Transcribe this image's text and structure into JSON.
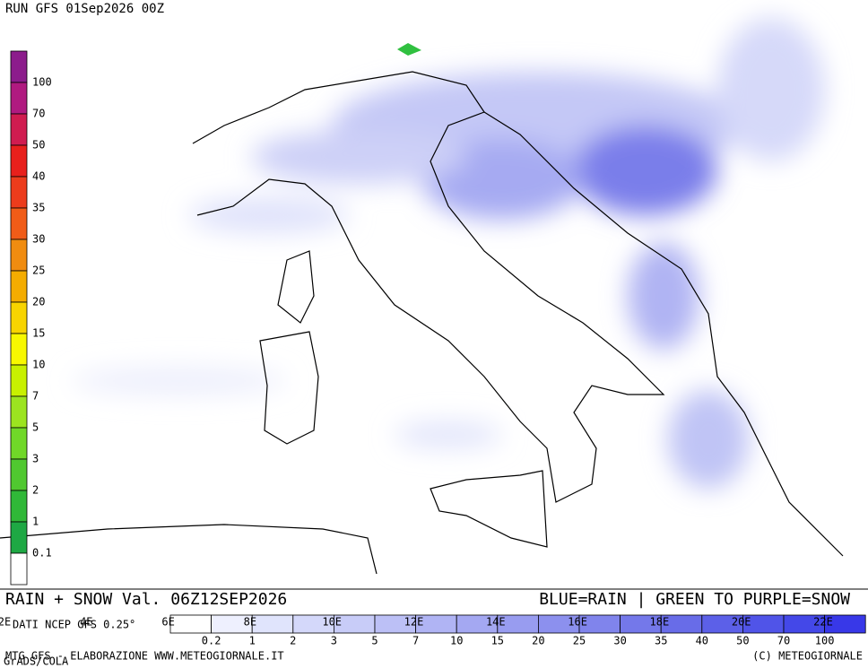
{
  "header": {
    "run": "RUN GFS 01Sep2026 00Z"
  },
  "snow_scale": {
    "labels": [
      "100",
      "70",
      "50",
      "40",
      "35",
      "30",
      "25",
      "20",
      "15",
      "10",
      "7",
      "5",
      "3",
      "2",
      "1",
      "0.1"
    ],
    "colors": [
      "#8c1c8c",
      "#b01a80",
      "#d01c50",
      "#e8201c",
      "#ec3c1c",
      "#f05c18",
      "#f08c10",
      "#f4ac00",
      "#f8d400",
      "#f8f800",
      "#c8f000",
      "#9ce420",
      "#70d828",
      "#50c830",
      "#30b838",
      "#1ea844",
      "#ffffff"
    ]
  },
  "footer": {
    "title": "RAIN + SNOW Val. 06Z12SEP2026",
    "legend": "BLUE=RAIN | GREEN TO PURPLE=SNOW",
    "source": "DATI NCEP GFS 0.25°",
    "credit": "MTG GFS - ELABORAZIONE WWW.METEOGIORNALE.IT",
    "copyright": "(C) METEOGIORNALE",
    "grads": "GrADS/COLA"
  },
  "longitudes": [
    "2E",
    "4E",
    "6E",
    "8E",
    "10E",
    "12E",
    "14E",
    "16E",
    "18E",
    "20E",
    "22E"
  ],
  "rain_scale": {
    "labels": [
      "0.2",
      "1",
      "2",
      "3",
      "5",
      "7",
      "10",
      "15",
      "20",
      "25",
      "30",
      "35",
      "40",
      "50",
      "70",
      "100"
    ],
    "colors": [
      "#ffffff",
      "#eef0fe",
      "#e0e4fc",
      "#d4d8fa",
      "#c8ccf8",
      "#bcc0f6",
      "#b0b4f4",
      "#a4a8f2",
      "#989cf0",
      "#8c90ee",
      "#8084ec",
      "#7478ea",
      "#686ce8",
      "#5c60e8",
      "#5054e8",
      "#4448e8",
      "#3838e8"
    ]
  }
}
